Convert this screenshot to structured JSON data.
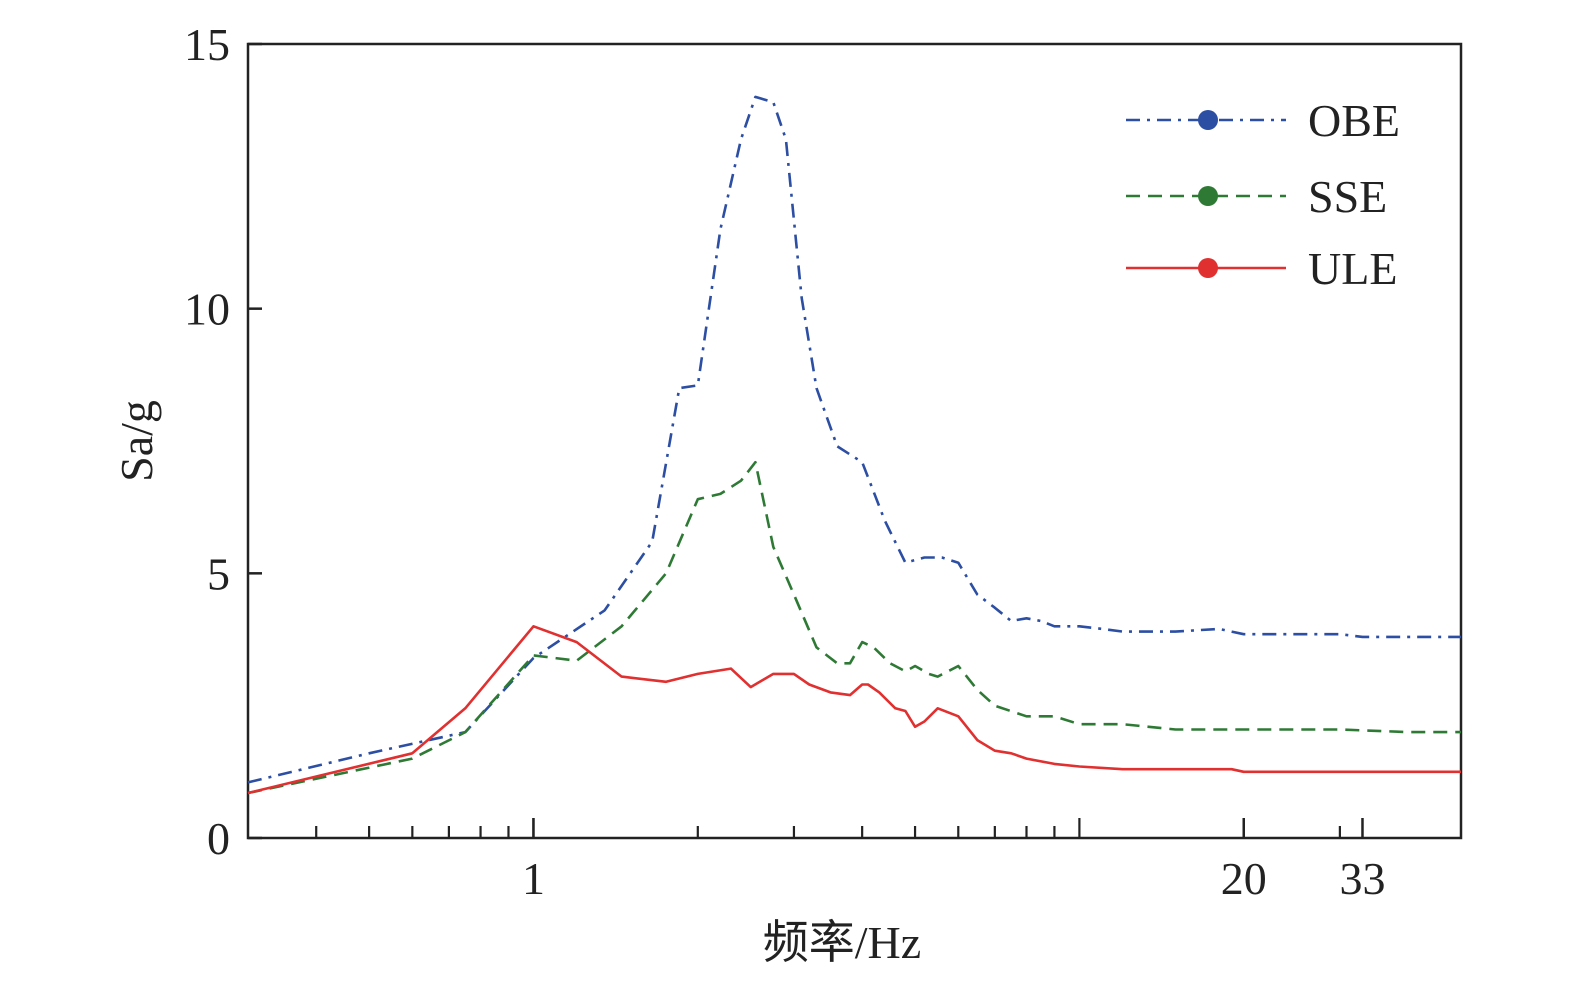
{
  "chart_data": {
    "type": "line",
    "title": "",
    "xlabel": "频率/Hz",
    "ylabel": "Sa/g",
    "xscale": "log",
    "xlim": [
      0.3,
      50
    ],
    "ylim": [
      0,
      15
    ],
    "x_tick_labels": [
      {
        "value": 1,
        "label": "1"
      },
      {
        "value": 20,
        "label": "20"
      },
      {
        "value": 33,
        "label": "33"
      }
    ],
    "x_minor_ticks": [
      0.4,
      0.5,
      0.6,
      0.7,
      0.8,
      0.9,
      1,
      2,
      3,
      4,
      5,
      6,
      7,
      8,
      9,
      10,
      20,
      30
    ],
    "y_ticks": [
      0,
      5,
      10,
      15
    ],
    "grid": false,
    "legend_position": "top-right",
    "series": [
      {
        "name": "OBE",
        "color": "#2c4ea3",
        "dash": "dash-dot",
        "x": [
          0.3,
          0.5,
          0.75,
          1.0,
          1.35,
          1.65,
          1.85,
          2.0,
          2.2,
          2.4,
          2.55,
          2.75,
          2.9,
          3.1,
          3.3,
          3.6,
          4.0,
          4.4,
          4.8,
          5.2,
          5.6,
          6.0,
          6.5,
          7.0,
          7.5,
          8.0,
          8.5,
          9.0,
          10,
          11,
          12,
          13,
          15,
          18,
          19,
          20,
          25,
          30,
          33,
          50
        ],
        "y": [
          1.05,
          1.6,
          2.0,
          3.4,
          4.3,
          5.6,
          8.5,
          8.55,
          11.5,
          13.2,
          14.0,
          13.9,
          13.2,
          10.2,
          8.5,
          7.4,
          7.1,
          6.0,
          5.2,
          5.3,
          5.3,
          5.2,
          4.6,
          4.35,
          4.1,
          4.15,
          4.1,
          4.0,
          4.0,
          3.95,
          3.9,
          3.9,
          3.9,
          3.95,
          3.9,
          3.85,
          3.85,
          3.85,
          3.8,
          3.8
        ]
      },
      {
        "name": "SSE",
        "color": "#2e7a35",
        "dash": "dashed",
        "x": [
          0.3,
          0.6,
          0.75,
          1.0,
          1.2,
          1.45,
          1.75,
          2.0,
          2.2,
          2.4,
          2.55,
          2.75,
          3.0,
          3.3,
          3.6,
          3.8,
          4.0,
          4.2,
          4.5,
          4.8,
          5.0,
          5.3,
          5.5,
          6.0,
          6.5,
          7.0,
          8.0,
          9.0,
          10,
          12,
          15,
          20,
          30,
          40,
          50
        ],
        "y": [
          0.85,
          1.5,
          2.0,
          3.45,
          3.35,
          4.0,
          5.0,
          6.4,
          6.5,
          6.75,
          7.1,
          5.5,
          4.6,
          3.6,
          3.3,
          3.3,
          3.7,
          3.6,
          3.3,
          3.15,
          3.25,
          3.1,
          3.05,
          3.25,
          2.8,
          2.5,
          2.3,
          2.3,
          2.15,
          2.15,
          2.05,
          2.05,
          2.05,
          2.0,
          2.0
        ]
      },
      {
        "name": "ULE",
        "color": "#e03030",
        "dash": "solid",
        "x": [
          0.3,
          0.6,
          0.75,
          1.0,
          1.2,
          1.45,
          1.75,
          2.0,
          2.3,
          2.5,
          2.75,
          3.0,
          3.2,
          3.5,
          3.8,
          4.0,
          4.1,
          4.3,
          4.6,
          4.8,
          5.0,
          5.2,
          5.5,
          6.0,
          6.5,
          7.0,
          7.5,
          8.0,
          9.0,
          10,
          12,
          15,
          19,
          20,
          25,
          30,
          50
        ],
        "y": [
          0.85,
          1.6,
          2.45,
          4.0,
          3.7,
          3.05,
          2.95,
          3.1,
          3.2,
          2.85,
          3.1,
          3.1,
          2.9,
          2.75,
          2.7,
          2.9,
          2.9,
          2.75,
          2.45,
          2.4,
          2.1,
          2.2,
          2.45,
          2.3,
          1.85,
          1.65,
          1.6,
          1.5,
          1.4,
          1.35,
          1.3,
          1.3,
          1.3,
          1.25,
          1.25,
          1.25,
          1.25
        ]
      }
    ]
  }
}
